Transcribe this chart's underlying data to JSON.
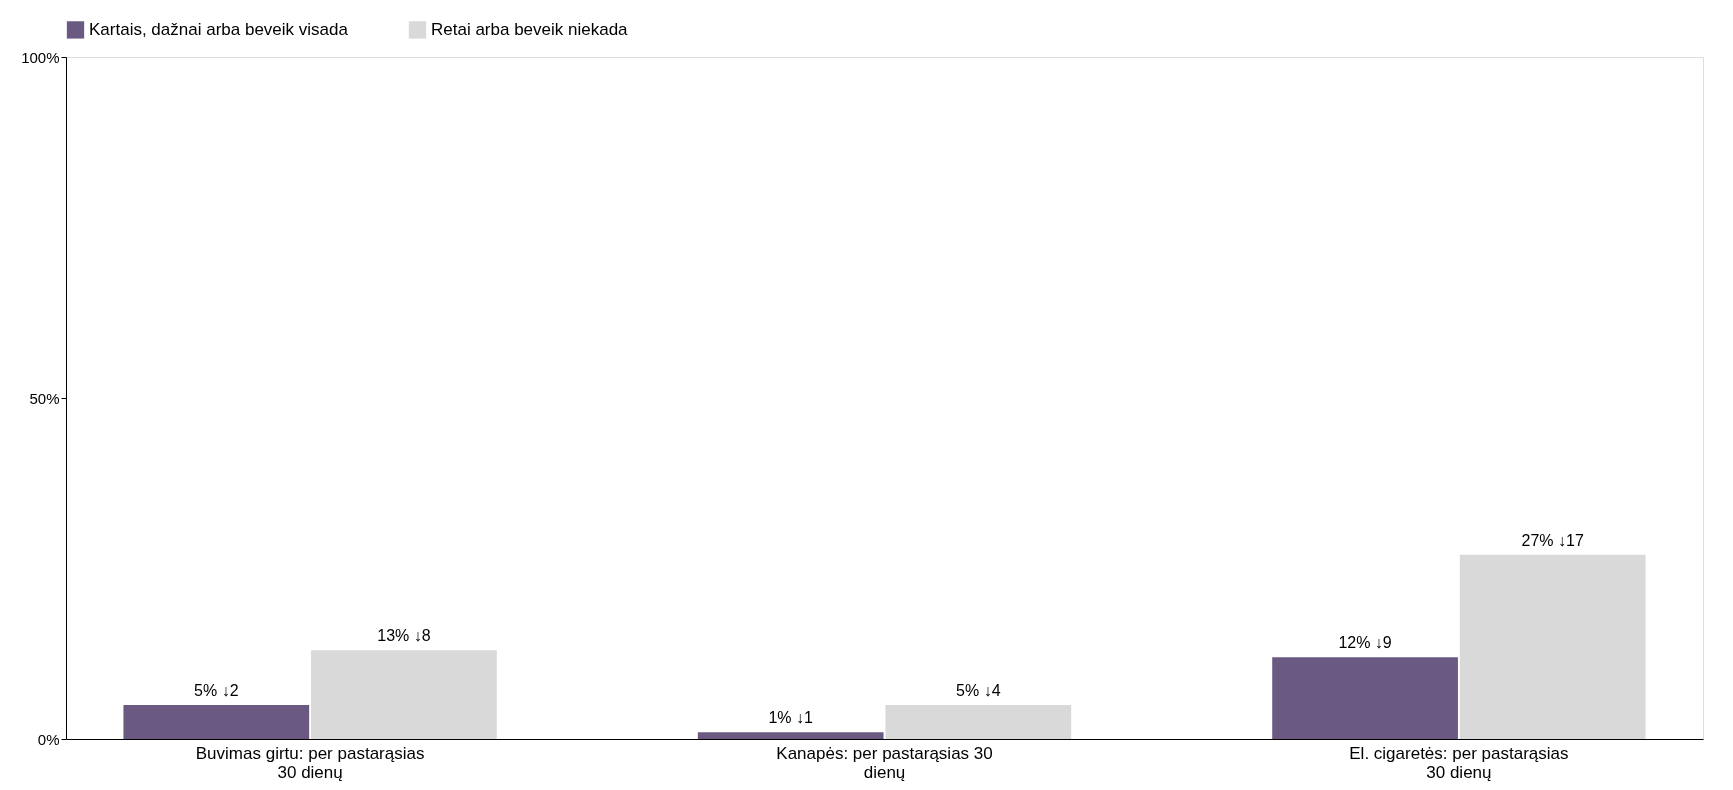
{
  "chart_data": {
    "type": "bar",
    "categories": [
      "Buvimas girtu: per pastarąsias 30 dienų",
      "Kanapės: per pastarąsias 30 dienų",
      "El. cigaretės: per pastarąsias 30 dienų"
    ],
    "series": [
      {
        "name": "Kartais, dažnai arba beveik visada",
        "color": "#6a5a82",
        "values": [
          5,
          1,
          12
        ],
        "value_labels": [
          "5% ↓2",
          "1% ↓1",
          "12% ↓9"
        ]
      },
      {
        "name": "Retai arba beveik niekada",
        "color": "#d9d9d9",
        "values": [
          13,
          5,
          27
        ],
        "value_labels": [
          "13% ↓8",
          "5% ↓4",
          "27% ↓17"
        ]
      }
    ],
    "ylim": [
      0,
      100
    ],
    "yticks": [
      {
        "value": 0,
        "label": "0%"
      },
      {
        "value": 50,
        "label": "50%"
      },
      {
        "value": 100,
        "label": "100%"
      }
    ],
    "grid": false,
    "legend": "top"
  }
}
